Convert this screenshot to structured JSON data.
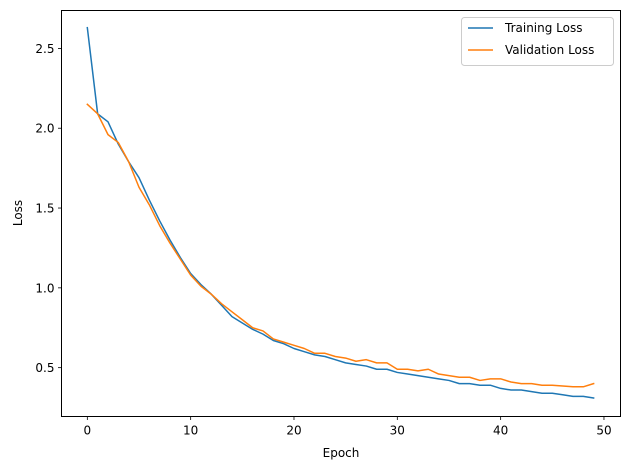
{
  "chart_data": {
    "type": "line",
    "title": "",
    "xlabel": "Epoch",
    "ylabel": "Loss",
    "xlim": [
      -2.5,
      51.6
    ],
    "ylim": [
      0.194,
      2.7375
    ],
    "xticks": [
      0,
      10,
      20,
      30,
      40,
      50
    ],
    "yticks": [
      0.5,
      1.0,
      1.5,
      2.0,
      2.5
    ],
    "xtick_labels": [
      "0",
      "10",
      "20",
      "30",
      "40",
      "50"
    ],
    "ytick_labels": [
      "0.5",
      "1.0",
      "1.5",
      "2.0",
      "2.5"
    ],
    "grid": false,
    "legend_position": "upper right",
    "x": [
      0,
      1,
      2,
      3,
      4,
      5,
      6,
      7,
      8,
      9,
      10,
      11,
      12,
      13,
      14,
      15,
      16,
      17,
      18,
      19,
      20,
      21,
      22,
      23,
      24,
      25,
      26,
      27,
      28,
      29,
      30,
      31,
      32,
      33,
      34,
      35,
      36,
      37,
      38,
      39,
      40,
      41,
      42,
      43,
      44,
      45,
      46,
      47,
      48,
      49
    ],
    "series": [
      {
        "name": "Training Loss",
        "color": "#1f77b4",
        "values": [
          2.63,
          2.09,
          2.04,
          1.9,
          1.79,
          1.69,
          1.55,
          1.42,
          1.3,
          1.19,
          1.09,
          1.02,
          0.96,
          0.89,
          0.82,
          0.78,
          0.74,
          0.71,
          0.67,
          0.65,
          0.62,
          0.6,
          0.58,
          0.57,
          0.55,
          0.53,
          0.52,
          0.51,
          0.49,
          0.49,
          0.47,
          0.46,
          0.45,
          0.44,
          0.43,
          0.42,
          0.4,
          0.4,
          0.39,
          0.39,
          0.37,
          0.36,
          0.36,
          0.35,
          0.34,
          0.34,
          0.33,
          0.32,
          0.32,
          0.31
        ]
      },
      {
        "name": "Validation Loss",
        "color": "#ff7f0e",
        "values": [
          2.15,
          2.09,
          1.96,
          1.91,
          1.79,
          1.63,
          1.52,
          1.39,
          1.28,
          1.18,
          1.08,
          1.01,
          0.96,
          0.9,
          0.85,
          0.8,
          0.75,
          0.73,
          0.68,
          0.66,
          0.64,
          0.62,
          0.59,
          0.59,
          0.57,
          0.56,
          0.54,
          0.55,
          0.53,
          0.53,
          0.49,
          0.49,
          0.48,
          0.49,
          0.46,
          0.45,
          0.44,
          0.44,
          0.42,
          0.43,
          0.43,
          0.41,
          0.4,
          0.4,
          0.39,
          0.39,
          0.385,
          0.38,
          0.38,
          0.4
        ]
      }
    ]
  },
  "legend": {
    "items": [
      {
        "label": "Training Loss",
        "color": "#1f77b4"
      },
      {
        "label": "Validation Loss",
        "color": "#ff7f0e"
      }
    ]
  }
}
